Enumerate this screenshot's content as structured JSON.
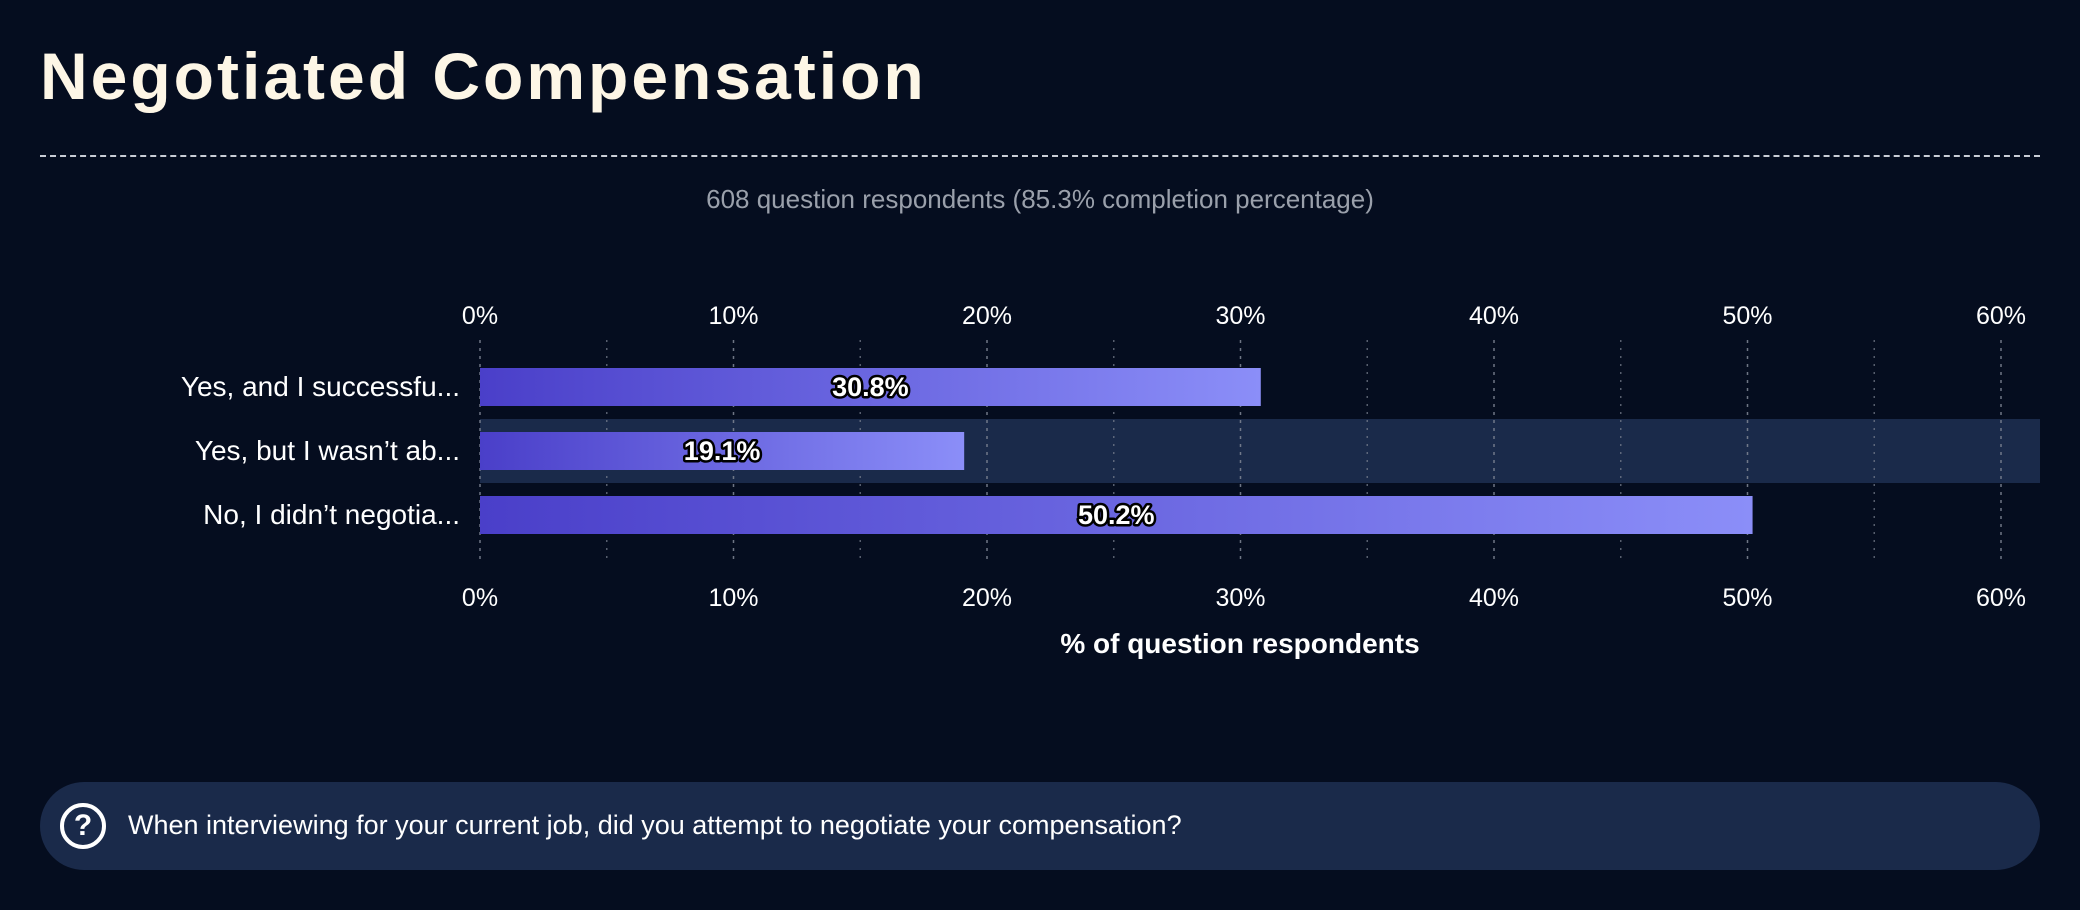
{
  "title": "Negotiated Compensation",
  "subtitle": "608 question respondents (85.3% completion percentage)",
  "question": {
    "text": "When interviewing for your current job, did you attempt to negotiate your compensation?",
    "icon": "help-circle-icon"
  },
  "chart_data": {
    "type": "bar",
    "orientation": "horizontal",
    "categories": [
      "Yes, and I successfu...",
      "Yes, but I wasn’t ab...",
      "No, I didn’t negotia..."
    ],
    "values": [
      30.8,
      19.1,
      50.2
    ],
    "value_labels": [
      "30.8%",
      "19.1%",
      "50.2%"
    ],
    "xlim": [
      0,
      60
    ],
    "xticks": [
      "0%",
      "10%",
      "20%",
      "30%",
      "40%",
      "50%",
      "60%"
    ],
    "xlabel": "% of question respondents",
    "grid": true,
    "highlighted_index": 1,
    "colors": {
      "bar_start": "#4a3fc9",
      "bar_end": "#8b8ef8",
      "highlight_row": "#1a2a4a",
      "grid": "#7a8190"
    }
  }
}
